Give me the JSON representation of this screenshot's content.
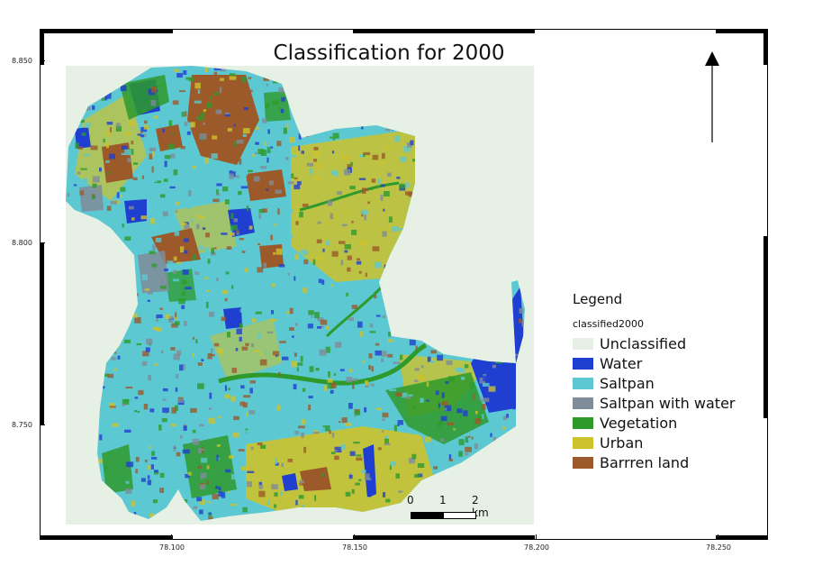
{
  "title": "Classification for 2000",
  "legend": {
    "title": "Legend",
    "layer_name": "classified2000",
    "classes": [
      {
        "label": "Unclassified",
        "color": "#e6f0e4"
      },
      {
        "label": "Water",
        "color": "#1f3fd1"
      },
      {
        "label": "Saltpan",
        "color": "#5cc8d2"
      },
      {
        "label": "Saltpan with water",
        "color": "#7f8c99"
      },
      {
        "label": "Vegetation",
        "color": "#2e9a2c"
      },
      {
        "label": "Urban",
        "color": "#cdc22c"
      },
      {
        "label": "Barrren land",
        "color": "#9c5a2a"
      }
    ]
  },
  "scale_bar": {
    "labels": [
      "0",
      "1",
      "2 km"
    ]
  },
  "axes": {
    "x_labels": [
      "78.100",
      "78.150",
      "78.200",
      "78.250"
    ],
    "y_labels": [
      "8.850",
      "8.800",
      "8.750"
    ]
  },
  "north_arrow": "north-arrow-icon"
}
